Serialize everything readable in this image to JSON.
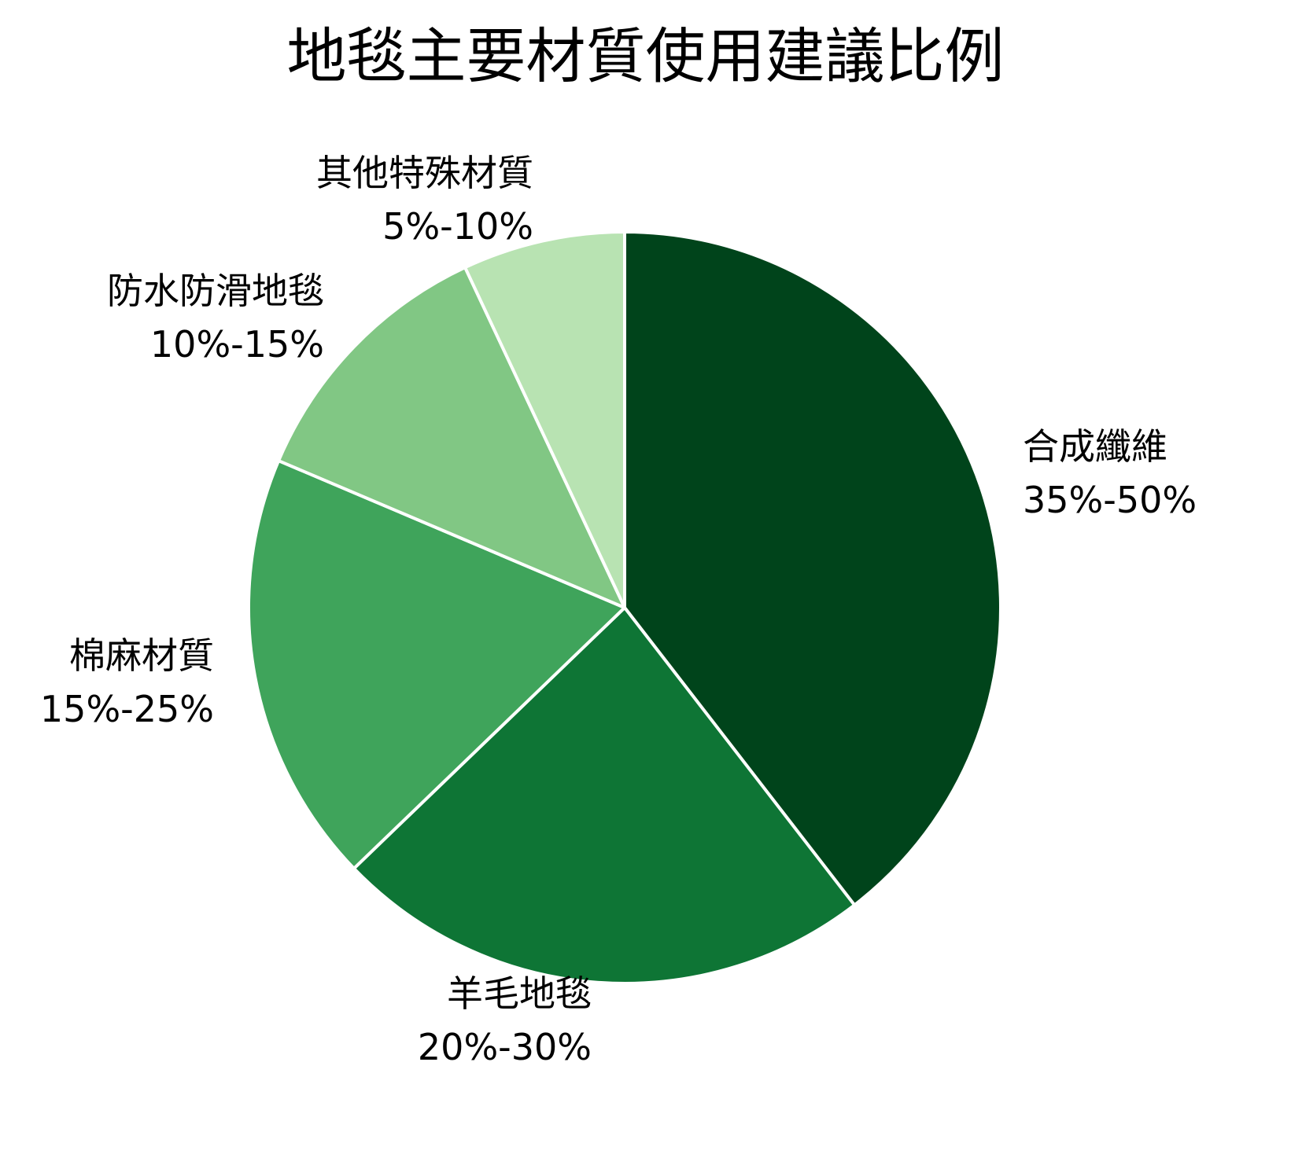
{
  "chart_data": {
    "type": "pie",
    "title": "地毯主要材質使用建議比例",
    "start_angle": "12 o'clock",
    "direction": "clockwise",
    "categories": [
      "合成纖維",
      "羊毛地毯",
      "棉麻材質",
      "防水防滑地毯",
      "其他特殊材質"
    ],
    "ranges": [
      "35%-50%",
      "20%-30%",
      "15%-25%",
      "10%-15%",
      "5%-10%"
    ],
    "values": [
      42.5,
      25,
      20,
      12.5,
      7.5
    ],
    "share_percent": [
      39.5,
      23.3,
      18.6,
      11.6,
      7.0
    ],
    "colors": [
      "#00441b",
      "#0e7535",
      "#3fa45b",
      "#81c784",
      "#b8e3b2"
    ],
    "labels": [
      {
        "name": "合成纖維",
        "range": "35%-50%"
      },
      {
        "name": "羊毛地毯",
        "range": "20%-30%"
      },
      {
        "name": "棉麻材質",
        "range": "15%-25%"
      },
      {
        "name": "防水防滑地毯",
        "range": "10%-15%"
      },
      {
        "name": "其他特殊材質",
        "range": "5%-10%"
      }
    ],
    "legend": "none",
    "edge_color": "#ffffff"
  }
}
